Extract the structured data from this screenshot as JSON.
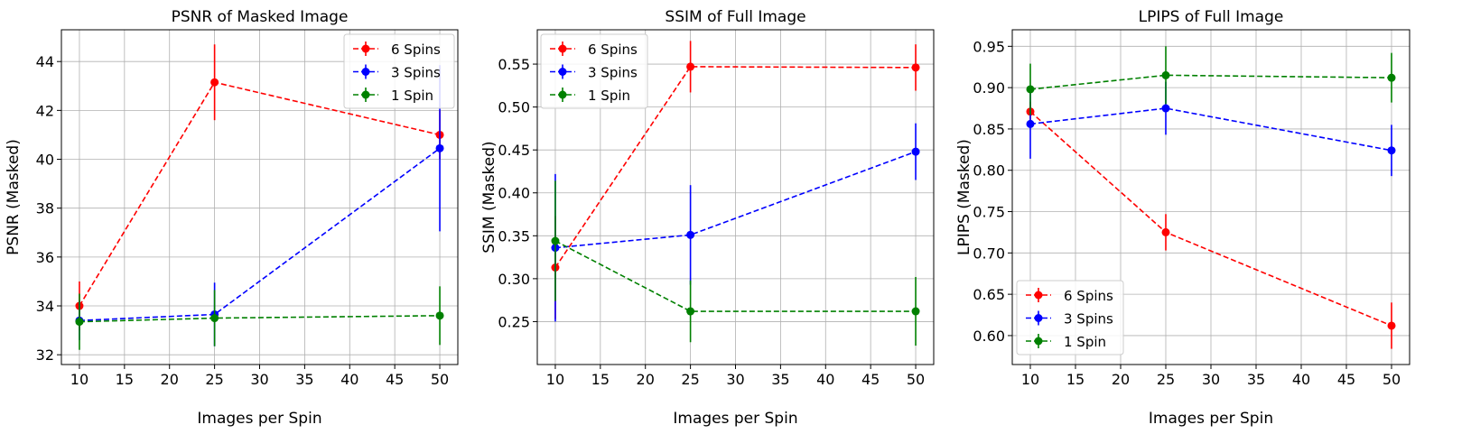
{
  "chart_data": [
    {
      "type": "line",
      "title": "PSNR of Masked Image",
      "xlabel": "Images per Spin",
      "ylabel": "PSNR (Masked)",
      "xlim": [
        8,
        52
      ],
      "ylim": [
        31.6,
        45.3
      ],
      "xticks": [
        10,
        15,
        20,
        25,
        30,
        35,
        40,
        45,
        50
      ],
      "yticks": [
        32,
        34,
        36,
        38,
        40,
        42,
        44
      ],
      "yticklabels": [
        "32",
        "34",
        "36",
        "38",
        "40",
        "42",
        "44"
      ],
      "legend_position": "top-right",
      "x": [
        10,
        25,
        50
      ],
      "series": [
        {
          "name": "6 Spins",
          "color": "#ff0000",
          "values": [
            34.0,
            43.15,
            41.0
          ],
          "errors": [
            1.0,
            1.55,
            1.0
          ]
        },
        {
          "name": "3 Spins",
          "color": "#0000ff",
          "values": [
            33.4,
            33.65,
            40.45
          ],
          "errors": [
            0.8,
            1.3,
            3.4
          ]
        },
        {
          "name": "1 Spin",
          "color": "#008000",
          "values": [
            33.35,
            33.5,
            33.6
          ],
          "errors": [
            1.15,
            1.15,
            1.2
          ]
        }
      ]
    },
    {
      "type": "line",
      "title": "SSIM of Full Image",
      "xlabel": "Images per Spin",
      "ylabel": "SSIM (Masked)",
      "xlim": [
        8,
        52
      ],
      "ylim": [
        0.2,
        0.59
      ],
      "xticks": [
        10,
        15,
        20,
        25,
        30,
        35,
        40,
        45,
        50
      ],
      "yticks": [
        0.25,
        0.3,
        0.35,
        0.4,
        0.45,
        0.5,
        0.55
      ],
      "yticklabels": [
        "0.25",
        "0.30",
        "0.35",
        "0.40",
        "0.45",
        "0.50",
        "0.55"
      ],
      "legend_position": "top-left",
      "x": [
        10,
        25,
        50
      ],
      "series": [
        {
          "name": "6 Spins",
          "color": "#ff0000",
          "values": [
            0.313,
            0.547,
            0.546
          ],
          "errors": [
            0.06,
            0.03,
            0.027
          ]
        },
        {
          "name": "3 Spins",
          "color": "#0000ff",
          "values": [
            0.336,
            0.351,
            0.448
          ],
          "errors": [
            0.086,
            0.058,
            0.033
          ]
        },
        {
          "name": "1 Spin",
          "color": "#008000",
          "values": [
            0.344,
            0.262,
            0.262
          ],
          "errors": [
            0.07,
            0.036,
            0.04
          ]
        }
      ]
    },
    {
      "type": "line",
      "title": "LPIPS of Full Image",
      "xlabel": "Images per Spin",
      "ylabel": "LPIPS (Masked)",
      "xlim": [
        8,
        52
      ],
      "ylim": [
        0.565,
        0.97
      ],
      "xticks": [
        10,
        15,
        20,
        25,
        30,
        35,
        40,
        45,
        50
      ],
      "yticks": [
        0.6,
        0.65,
        0.7,
        0.75,
        0.8,
        0.85,
        0.9,
        0.95
      ],
      "yticklabels": [
        "0.60",
        "0.65",
        "0.70",
        "0.75",
        "0.80",
        "0.85",
        "0.90",
        "0.95"
      ],
      "legend_position": "bottom-left",
      "x": [
        10,
        25,
        50
      ],
      "series": [
        {
          "name": "6 Spins",
          "color": "#ff0000",
          "values": [
            0.871,
            0.725,
            0.612
          ],
          "errors": [
            0.012,
            0.022,
            0.028
          ]
        },
        {
          "name": "3 Spins",
          "color": "#0000ff",
          "values": [
            0.856,
            0.875,
            0.824
          ],
          "errors": [
            0.042,
            0.032,
            0.031
          ]
        },
        {
          "name": "1 Spin",
          "color": "#008000",
          "values": [
            0.898,
            0.915,
            0.912
          ],
          "errors": [
            0.031,
            0.035,
            0.03
          ]
        }
      ]
    }
  ]
}
